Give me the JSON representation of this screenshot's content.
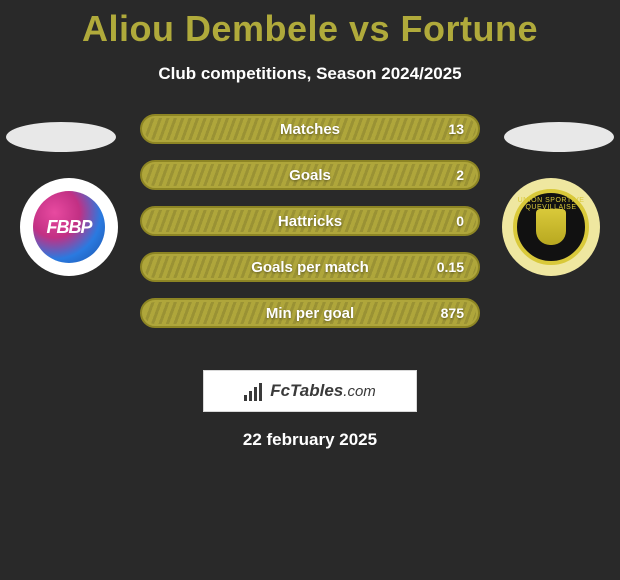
{
  "title": "Aliou Dembele vs Fortune",
  "subtitle": "Club competitions, Season 2024/2025",
  "date": "22 february 2025",
  "colors": {
    "background": "#292929",
    "title": "#b0aa3b",
    "bar_fill": "#afa63b",
    "bar_border": "#8d8524",
    "text": "#ffffff"
  },
  "left_badge": {
    "label": "FBBP",
    "bg": "#ffffff"
  },
  "right_badge": {
    "ring_text": "UNION SPORTIVE QUEVILLAISE",
    "bg": "#efe7a0"
  },
  "stats": [
    {
      "label": "Matches",
      "value": "13"
    },
    {
      "label": "Goals",
      "value": "2"
    },
    {
      "label": "Hattricks",
      "value": "0"
    },
    {
      "label": "Goals per match",
      "value": "0.15"
    },
    {
      "label": "Min per goal",
      "value": "875"
    }
  ],
  "brand": {
    "name": "FcTables",
    "suffix": ".com"
  }
}
